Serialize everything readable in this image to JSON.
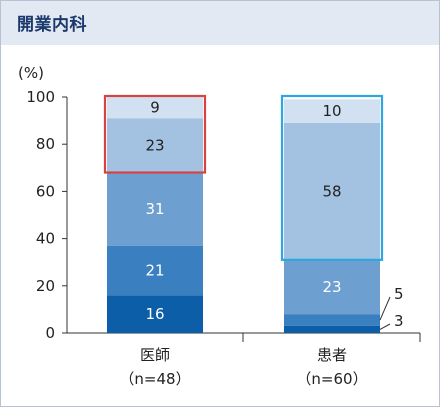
{
  "header": {
    "title": "開業内科"
  },
  "chart_data": {
    "type": "bar",
    "stacked": true,
    "ylabel": "(%)",
    "ylim": [
      0,
      100
    ],
    "yticks": [
      0,
      20,
      40,
      60,
      80,
      100
    ],
    "categories": [
      {
        "name": "医師",
        "sub": "（n=48）"
      },
      {
        "name": "患者",
        "sub": "（n=60）"
      }
    ],
    "series": [
      {
        "values": [
          16,
          3
        ],
        "color": "#0c5ea8",
        "label_color": "#ffffff"
      },
      {
        "values": [
          21,
          5
        ],
        "color": "#3a80c1",
        "label_color": "#ffffff"
      },
      {
        "values": [
          31,
          23
        ],
        "color": "#6d9fd0",
        "label_color": "#ffffff"
      },
      {
        "values": [
          23,
          58
        ],
        "color": "#a3c2e2",
        "label_color": "#222222"
      },
      {
        "values": [
          9,
          10
        ],
        "color": "#d2e1f1",
        "label_color": "#222222"
      }
    ],
    "highlights": [
      {
        "category_index": 0,
        "from": 68,
        "to": 100,
        "color": "#d9433f"
      },
      {
        "category_index": 1,
        "from": 31,
        "to": 100,
        "color": "#2ea7e0"
      }
    ]
  }
}
